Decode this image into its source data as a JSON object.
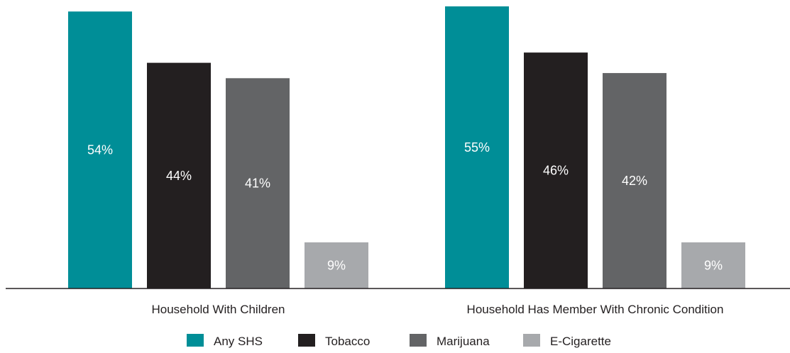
{
  "chart_data": {
    "type": "bar",
    "categories": [
      "Household With Children",
      "Household Has Member With Chronic Condition"
    ],
    "series": [
      {
        "name": "Any SHS",
        "color": "#008e97",
        "values": [
          54,
          55
        ]
      },
      {
        "name": "Tobacco",
        "color": "#231f20",
        "values": [
          44,
          46
        ]
      },
      {
        "name": "Marijuana",
        "color": "#636466",
        "values": [
          41,
          42
        ]
      },
      {
        "name": "E-Cigarette",
        "color": "#a7a9ac",
        "values": [
          9,
          9
        ]
      }
    ],
    "value_suffix": "%",
    "title": "",
    "xlabel": "",
    "ylabel": "",
    "ylim": [
      0,
      55
    ],
    "grid": false,
    "legend": "bottom"
  }
}
